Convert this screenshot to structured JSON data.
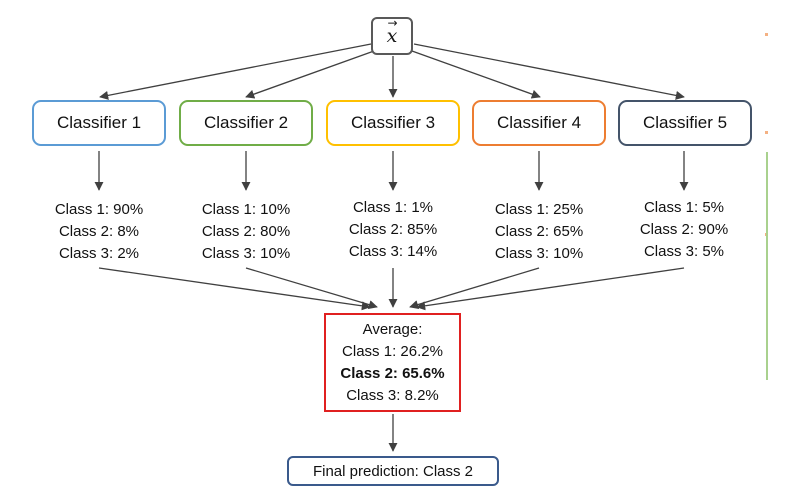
{
  "input": {
    "symbol": "x",
    "vector_arrow": "→"
  },
  "classifiers": [
    {
      "label": "Classifier 1",
      "color": "#5b9bd5",
      "probs": [
        "Class 1: 90%",
        "Class 2: 8%",
        "Class 3: 2%"
      ]
    },
    {
      "label": "Classifier 2",
      "color": "#70ad47",
      "probs": [
        "Class 1: 10%",
        "Class 2: 80%",
        "Class 3: 10%"
      ]
    },
    {
      "label": "Classifier 3",
      "color": "#ffc000",
      "probs": [
        "Class 1: 1%",
        "Class 2: 85%",
        "Class 3: 14%"
      ]
    },
    {
      "label": "Classifier 4",
      "color": "#ed7d31",
      "probs": [
        "Class 1: 25%",
        "Class 2: 65%",
        "Class 3: 10%"
      ]
    },
    {
      "label": "Classifier 5",
      "color": "#44546a",
      "probs": [
        "Class 1: 5%",
        "Class 2: 90%",
        "Class 3: 5%"
      ]
    }
  ],
  "average": {
    "heading": "Average:",
    "lines": [
      "Class 1: 26.2%",
      "Class 2: 65.6%",
      "Class 3: 8.2%"
    ],
    "highlighted_line": 1,
    "border_color": "#e02020"
  },
  "final": {
    "label": "Final prediction: Class 2",
    "border_color": "#3a5a8c"
  },
  "colors": {
    "arrow": "#404040",
    "input_border": "#595959"
  }
}
